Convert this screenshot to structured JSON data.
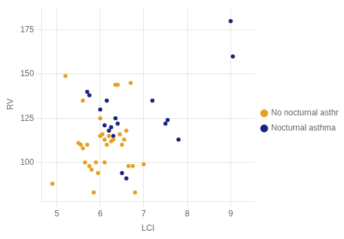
{
  "chart_data": {
    "type": "scatter",
    "xlabel": "LCI",
    "ylabel": "RV",
    "series": [
      {
        "name": "No nocturnal asthma",
        "color": "#E8A020",
        "x": [
          4.9,
          5.2,
          5.5,
          5.55,
          5.6,
          5.6,
          5.65,
          5.7,
          5.75,
          5.8,
          5.85,
          5.9,
          5.95,
          6.0,
          6.0,
          6.05,
          6.1,
          6.1,
          6.15,
          6.2,
          6.25,
          6.3,
          6.35,
          6.4,
          6.45,
          6.5,
          6.55,
          6.6,
          6.65,
          6.7,
          6.75,
          6.8,
          7.0
        ],
        "values": [
          88,
          149,
          111,
          110,
          108,
          135,
          100,
          110,
          98,
          96,
          83,
          100,
          94,
          115,
          125,
          116,
          100,
          113,
          110,
          115,
          112,
          113,
          144,
          144,
          116,
          110,
          113,
          118,
          98,
          145,
          98,
          83,
          99
        ]
      },
      {
        "name": "Nocturnal asthma",
        "color": "#1A237E",
        "x": [
          5.7,
          5.75,
          6.0,
          6.1,
          6.15,
          6.2,
          6.25,
          6.3,
          6.35,
          6.4,
          6.5,
          6.6,
          7.2,
          7.5,
          7.55,
          7.8,
          9.0,
          9.05
        ],
        "values": [
          140,
          138,
          130,
          121,
          135,
          118,
          120,
          115,
          125,
          122,
          94,
          91,
          135,
          122,
          124,
          113,
          180,
          160
        ]
      }
    ],
    "xlim": [
      4.65,
      9.55
    ],
    "ylim": [
      78,
      188
    ],
    "xticks": [
      5,
      6,
      7,
      8,
      9
    ],
    "yticks": [
      100,
      125,
      150,
      175
    ],
    "grid": true,
    "legend": "right"
  }
}
